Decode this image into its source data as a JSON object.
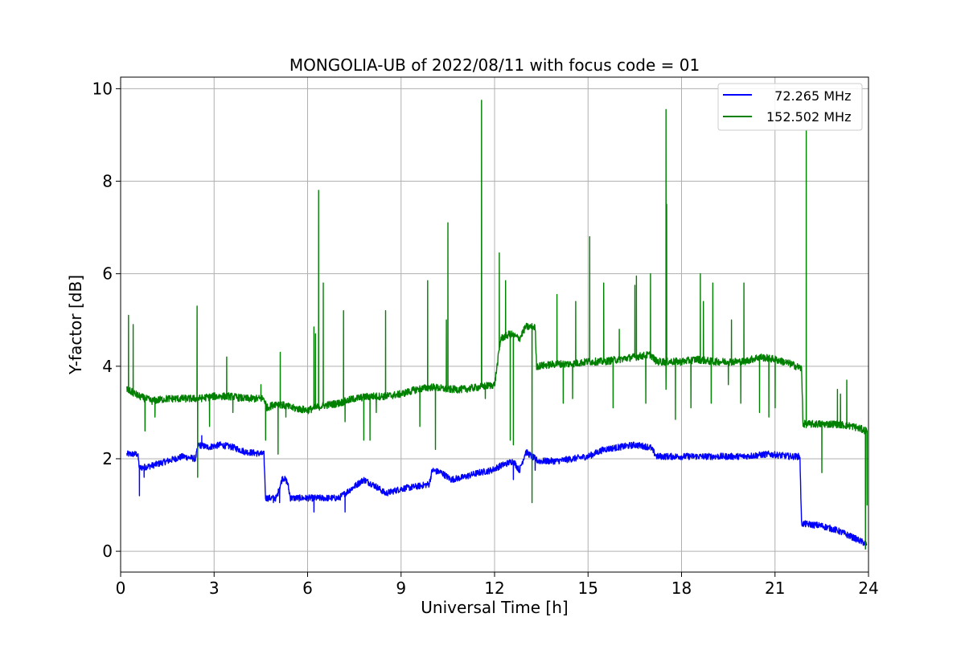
{
  "chart_data": {
    "type": "line",
    "title": "MONGOLIA-UB of 2022/08/11 with focus code = 01",
    "xlabel": "Universal Time [h]",
    "ylabel": "Y-factor [dB]",
    "xlim": [
      0,
      24
    ],
    "ylim": [
      -0.45,
      10.25
    ],
    "xticks": [
      0,
      3,
      6,
      9,
      12,
      15,
      18,
      21,
      24
    ],
    "yticks": [
      0,
      2,
      4,
      6,
      8,
      10
    ],
    "grid": true,
    "legend_position": "top-right",
    "series": [
      {
        "name": "  72.265 MHz",
        "color": "#0000ff",
        "noise": 0.07,
        "base": [
          [
            0.2,
            2.1
          ],
          [
            0.55,
            2.1
          ],
          [
            0.6,
            1.8
          ],
          [
            1.0,
            1.85
          ],
          [
            1.5,
            1.95
          ],
          [
            2.0,
            2.05
          ],
          [
            2.4,
            2.0
          ],
          [
            2.5,
            2.3
          ],
          [
            2.8,
            2.25
          ],
          [
            3.2,
            2.3
          ],
          [
            3.6,
            2.25
          ],
          [
            4.0,
            2.15
          ],
          [
            4.6,
            2.1
          ],
          [
            4.65,
            1.15
          ],
          [
            5.0,
            1.15
          ],
          [
            5.2,
            1.6
          ],
          [
            5.35,
            1.5
          ],
          [
            5.45,
            1.15
          ],
          [
            6.0,
            1.15
          ],
          [
            6.5,
            1.15
          ],
          [
            7.0,
            1.15
          ],
          [
            7.3,
            1.3
          ],
          [
            7.8,
            1.55
          ],
          [
            8.2,
            1.4
          ],
          [
            8.5,
            1.25
          ],
          [
            9.0,
            1.35
          ],
          [
            9.5,
            1.4
          ],
          [
            9.9,
            1.45
          ],
          [
            10.0,
            1.75
          ],
          [
            10.3,
            1.7
          ],
          [
            10.6,
            1.55
          ],
          [
            11.0,
            1.6
          ],
          [
            11.5,
            1.7
          ],
          [
            11.9,
            1.75
          ],
          [
            12.2,
            1.85
          ],
          [
            12.6,
            1.95
          ],
          [
            12.8,
            1.75
          ],
          [
            13.0,
            2.15
          ],
          [
            13.4,
            1.95
          ],
          [
            14.0,
            1.95
          ],
          [
            14.5,
            2.0
          ],
          [
            15.0,
            2.05
          ],
          [
            15.5,
            2.2
          ],
          [
            16.0,
            2.25
          ],
          [
            16.5,
            2.3
          ],
          [
            17.0,
            2.25
          ],
          [
            17.2,
            2.05
          ],
          [
            18.0,
            2.05
          ],
          [
            19.0,
            2.05
          ],
          [
            20.0,
            2.05
          ],
          [
            20.8,
            2.1
          ],
          [
            21.5,
            2.05
          ],
          [
            21.8,
            2.05
          ],
          [
            21.85,
            0.6
          ],
          [
            22.5,
            0.55
          ],
          [
            23.0,
            0.45
          ],
          [
            23.5,
            0.3
          ],
          [
            23.95,
            0.15
          ]
        ],
        "spikes": [
          [
            0.6,
            1.2
          ],
          [
            0.75,
            1.6
          ],
          [
            2.6,
            2.5
          ],
          [
            4.9,
            1.05
          ],
          [
            5.1,
            1.05
          ],
          [
            6.2,
            0.85
          ],
          [
            7.2,
            0.85
          ],
          [
            12.6,
            1.55
          ],
          [
            13.3,
            1.75
          ],
          [
            23.9,
            0.05
          ]
        ]
      },
      {
        "name": "152.502 MHz",
        "color": "#008000",
        "noise": 0.08,
        "base": [
          [
            0.2,
            3.5
          ],
          [
            0.6,
            3.35
          ],
          [
            1.0,
            3.25
          ],
          [
            1.5,
            3.3
          ],
          [
            2.0,
            3.3
          ],
          [
            2.5,
            3.3
          ],
          [
            3.0,
            3.35
          ],
          [
            3.5,
            3.35
          ],
          [
            4.0,
            3.3
          ],
          [
            4.6,
            3.3
          ],
          [
            4.7,
            3.1
          ],
          [
            5.0,
            3.2
          ],
          [
            5.5,
            3.1
          ],
          [
            6.0,
            3.05
          ],
          [
            6.5,
            3.15
          ],
          [
            7.0,
            3.2
          ],
          [
            7.5,
            3.3
          ],
          [
            8.0,
            3.35
          ],
          [
            8.5,
            3.35
          ],
          [
            9.0,
            3.4
          ],
          [
            9.5,
            3.5
          ],
          [
            10.0,
            3.55
          ],
          [
            10.5,
            3.5
          ],
          [
            11.0,
            3.5
          ],
          [
            11.5,
            3.55
          ],
          [
            12.0,
            3.6
          ],
          [
            12.2,
            4.6
          ],
          [
            12.5,
            4.7
          ],
          [
            12.8,
            4.6
          ],
          [
            13.0,
            4.85
          ],
          [
            13.3,
            4.85
          ],
          [
            13.35,
            4.0
          ],
          [
            14.0,
            4.05
          ],
          [
            14.5,
            4.05
          ],
          [
            15.0,
            4.1
          ],
          [
            15.5,
            4.1
          ],
          [
            16.0,
            4.15
          ],
          [
            16.5,
            4.2
          ],
          [
            17.0,
            4.25
          ],
          [
            17.2,
            4.1
          ],
          [
            18.0,
            4.1
          ],
          [
            18.5,
            4.15
          ],
          [
            19.0,
            4.1
          ],
          [
            19.5,
            4.1
          ],
          [
            20.0,
            4.1
          ],
          [
            20.5,
            4.2
          ],
          [
            21.0,
            4.15
          ],
          [
            21.5,
            4.05
          ],
          [
            21.85,
            3.95
          ],
          [
            21.9,
            2.75
          ],
          [
            22.5,
            2.75
          ],
          [
            23.0,
            2.75
          ],
          [
            23.5,
            2.7
          ],
          [
            23.95,
            2.6
          ]
        ],
        "spikes": [
          [
            0.25,
            5.1
          ],
          [
            0.4,
            4.9
          ],
          [
            0.78,
            2.6
          ],
          [
            1.1,
            2.9
          ],
          [
            2.45,
            5.3
          ],
          [
            2.47,
            1.6
          ],
          [
            2.85,
            2.7
          ],
          [
            3.4,
            4.2
          ],
          [
            3.6,
            3.0
          ],
          [
            4.5,
            3.6
          ],
          [
            4.65,
            2.4
          ],
          [
            5.05,
            2.1
          ],
          [
            5.12,
            4.3
          ],
          [
            5.3,
            2.9
          ],
          [
            6.2,
            4.85
          ],
          [
            6.25,
            4.7
          ],
          [
            6.35,
            7.8
          ],
          [
            6.5,
            5.8
          ],
          [
            7.15,
            5.2
          ],
          [
            7.2,
            2.8
          ],
          [
            7.8,
            2.4
          ],
          [
            8.0,
            2.4
          ],
          [
            8.2,
            3.0
          ],
          [
            8.5,
            5.2
          ],
          [
            9.6,
            2.7
          ],
          [
            9.85,
            5.85
          ],
          [
            10.1,
            2.2
          ],
          [
            10.45,
            5.0
          ],
          [
            10.5,
            7.1
          ],
          [
            11.58,
            9.75
          ],
          [
            11.7,
            3.3
          ],
          [
            12.15,
            6.45
          ],
          [
            12.35,
            5.85
          ],
          [
            12.5,
            2.4
          ],
          [
            12.6,
            2.3
          ],
          [
            13.2,
            1.05
          ],
          [
            14.0,
            5.55
          ],
          [
            14.2,
            3.2
          ],
          [
            14.5,
            3.3
          ],
          [
            14.6,
            5.4
          ],
          [
            15.05,
            6.8
          ],
          [
            15.5,
            5.8
          ],
          [
            15.8,
            3.1
          ],
          [
            16.0,
            4.8
          ],
          [
            16.5,
            5.75
          ],
          [
            16.55,
            5.95
          ],
          [
            16.85,
            3.2
          ],
          [
            17.0,
            6.0
          ],
          [
            17.5,
            9.55
          ],
          [
            17.52,
            7.5
          ],
          [
            17.5,
            3.5
          ],
          [
            17.8,
            2.85
          ],
          [
            18.3,
            3.1
          ],
          [
            18.6,
            6.0
          ],
          [
            18.7,
            5.4
          ],
          [
            18.95,
            3.2
          ],
          [
            19.0,
            5.8
          ],
          [
            19.5,
            3.6
          ],
          [
            19.6,
            5.0
          ],
          [
            19.9,
            3.2
          ],
          [
            20.0,
            5.8
          ],
          [
            20.5,
            3.0
          ],
          [
            20.8,
            2.9
          ],
          [
            21.0,
            3.1
          ],
          [
            22.0,
            9.1
          ],
          [
            22.5,
            1.7
          ],
          [
            23.0,
            3.5
          ],
          [
            23.1,
            3.4
          ],
          [
            23.3,
            3.7
          ],
          [
            23.9,
            0.05
          ],
          [
            23.95,
            1.0
          ]
        ]
      }
    ]
  }
}
